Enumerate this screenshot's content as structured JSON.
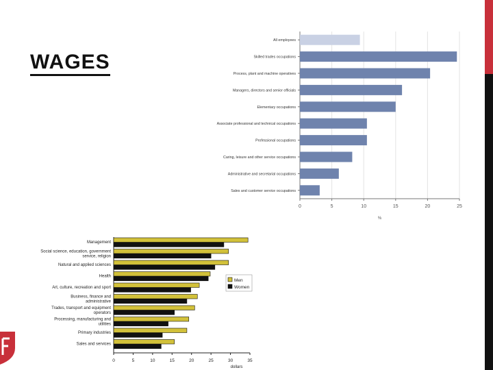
{
  "slide": {
    "title": "WAGES",
    "colors": {
      "side_bar": "#111111",
      "side_bar_accent": "#c8303a",
      "logo": "#c8303a"
    }
  },
  "chart_data": [
    {
      "type": "bar",
      "orientation": "horizontal",
      "categories": [
        "All employees",
        "Skilled trades occupations",
        "Process, plant and machine operatives",
        "Managers, directors and senior officials",
        "Elementary occupations",
        "Associate professional and technical occupations",
        "Professional occupations",
        "Caring, leisure and other service occupations",
        "Administrative and secretarial occupations",
        "Sales and customer service occupations"
      ],
      "values": [
        9.4,
        24.6,
        20.4,
        16.0,
        15.0,
        10.5,
        10.5,
        8.2,
        6.1,
        3.1
      ],
      "highlight_index": 0,
      "colors": {
        "bar": "#6f83ad",
        "highlight": "#c9d1e4"
      },
      "xlabel": "%",
      "xlim": [
        0,
        25
      ],
      "xticks": [
        0,
        5,
        10,
        15,
        20,
        25
      ],
      "grid": true
    },
    {
      "type": "bar",
      "orientation": "horizontal",
      "categories": [
        "Management",
        "Social science, education, government service, religion",
        "Natural and applied sciences",
        "Health",
        "Art, culture, recreation and sport",
        "Business, finance and administrative",
        "Trades, transport and equipment operators",
        "Processing, manufacturing and utilities",
        "Primary industries",
        "Sales and services"
      ],
      "series": [
        {
          "name": "Men",
          "values": [
            34.5,
            29.5,
            29.5,
            24.8,
            22.0,
            21.5,
            20.8,
            19.3,
            18.8,
            15.6
          ],
          "color": "#d2c13a"
        },
        {
          "name": "Women",
          "values": [
            28.3,
            25.0,
            26.0,
            24.3,
            19.8,
            18.8,
            15.6,
            14.0,
            12.5,
            12.2
          ],
          "color": "#111111"
        }
      ],
      "xlabel": "dollars",
      "xlim": [
        0,
        35
      ],
      "xticks": [
        0,
        5,
        10,
        15,
        20,
        25,
        30,
        35
      ],
      "legend": "right"
    }
  ]
}
